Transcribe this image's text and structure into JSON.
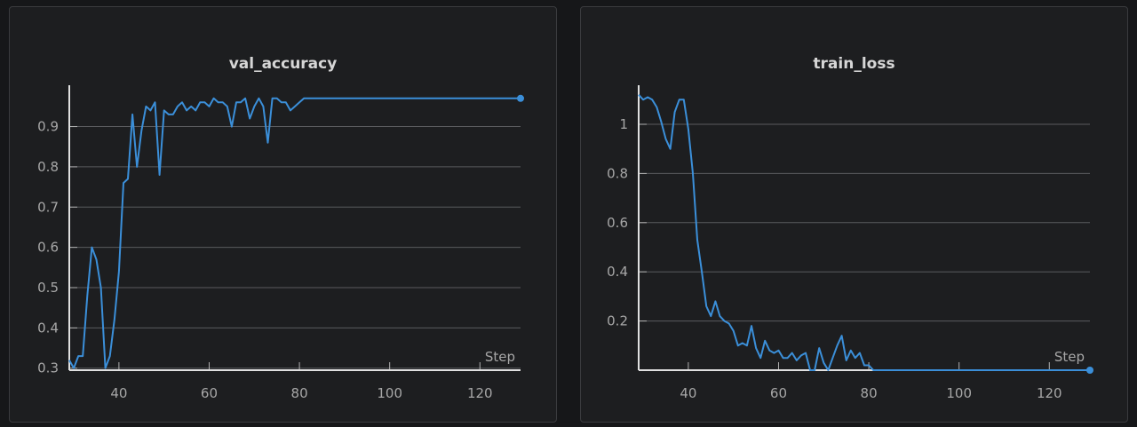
{
  "charts": [
    {
      "title": "val_accuracy",
      "chart_data": {
        "type": "line",
        "title": "val_accuracy",
        "xlabel": "Step",
        "ylabel": "",
        "xlim": [
          29,
          129
        ],
        "ylim": [
          0.295,
          0.985
        ],
        "xticks": [
          40,
          60,
          80,
          100,
          120
        ],
        "yticks": [
          0.3,
          0.4,
          0.5,
          0.6,
          0.7,
          0.8,
          0.9
        ],
        "xtick_labels": [
          "40",
          "60",
          "80",
          "100",
          "120"
        ],
        "ytick_labels": [
          "0.3",
          "0.4",
          "0.5",
          "0.6",
          "0.7",
          "0.8",
          "0.9"
        ],
        "grid": "horizontal",
        "line_color": "#3b8fd9",
        "series": [
          {
            "x": [
              29,
              30,
              31,
              32,
              33,
              34,
              35,
              36,
              37,
              38,
              39,
              40,
              41,
              42,
              43,
              44,
              45,
              46,
              47,
              48,
              49,
              50,
              51,
              52,
              53,
              54,
              55,
              56,
              57,
              58,
              59,
              60,
              61,
              62,
              63,
              64,
              65,
              66,
              67,
              68,
              69,
              70,
              71,
              72,
              73,
              74,
              75,
              76,
              77,
              78,
              79,
              80,
              81,
              82,
              83,
              129
            ],
            "y": [
              0.32,
              0.3,
              0.33,
              0.33,
              0.48,
              0.6,
              0.57,
              0.5,
              0.3,
              0.33,
              0.42,
              0.54,
              0.76,
              0.77,
              0.93,
              0.8,
              0.89,
              0.95,
              0.94,
              0.96,
              0.78,
              0.94,
              0.93,
              0.93,
              0.95,
              0.96,
              0.94,
              0.95,
              0.94,
              0.96,
              0.96,
              0.95,
              0.97,
              0.96,
              0.96,
              0.95,
              0.9,
              0.96,
              0.96,
              0.97,
              0.92,
              0.95,
              0.97,
              0.95,
              0.86,
              0.97,
              0.97,
              0.96,
              0.96,
              0.94,
              0.95,
              0.96,
              0.97,
              0.97,
              0.97,
              0.97
            ]
          }
        ]
      }
    },
    {
      "title": "train_loss",
      "chart_data": {
        "type": "line",
        "title": "train_loss",
        "xlabel": "Step",
        "ylabel": "",
        "xlim": [
          29,
          129
        ],
        "ylim": [
          0,
          1.13
        ],
        "xticks": [
          40,
          60,
          80,
          100,
          120
        ],
        "yticks": [
          0.2,
          0.4,
          0.6,
          0.8,
          1
        ],
        "xtick_labels": [
          "40",
          "60",
          "80",
          "100",
          "120"
        ],
        "ytick_labels": [
          "0.2",
          "0.4",
          "0.6",
          "0.8",
          "1"
        ],
        "grid": "horizontal",
        "line_color": "#3b8fd9",
        "series": [
          {
            "x": [
              29,
              30,
              31,
              32,
              33,
              34,
              35,
              36,
              37,
              38,
              39,
              40,
              41,
              42,
              43,
              44,
              45,
              46,
              47,
              48,
              49,
              50,
              51,
              52,
              53,
              54,
              55,
              56,
              57,
              58,
              59,
              60,
              61,
              62,
              63,
              64,
              65,
              66,
              67,
              68,
              69,
              70,
              71,
              72,
              73,
              74,
              75,
              76,
              77,
              78,
              79,
              80,
              81,
              82,
              83,
              129
            ],
            "y": [
              1.12,
              1.1,
              1.11,
              1.1,
              1.07,
              1.01,
              0.94,
              0.9,
              1.05,
              1.1,
              1.1,
              0.98,
              0.8,
              0.53,
              0.4,
              0.26,
              0.22,
              0.28,
              0.22,
              0.2,
              0.19,
              0.16,
              0.1,
              0.11,
              0.1,
              0.18,
              0.09,
              0.05,
              0.12,
              0.08,
              0.07,
              0.08,
              0.05,
              0.05,
              0.07,
              0.04,
              0.06,
              0.07,
              0.0,
              0.0,
              0.09,
              0.03,
              0.0,
              0.05,
              0.1,
              0.14,
              0.04,
              0.08,
              0.05,
              0.07,
              0.02,
              0.02,
              0.0,
              0.0,
              0.0,
              0.0
            ]
          }
        ]
      }
    }
  ]
}
